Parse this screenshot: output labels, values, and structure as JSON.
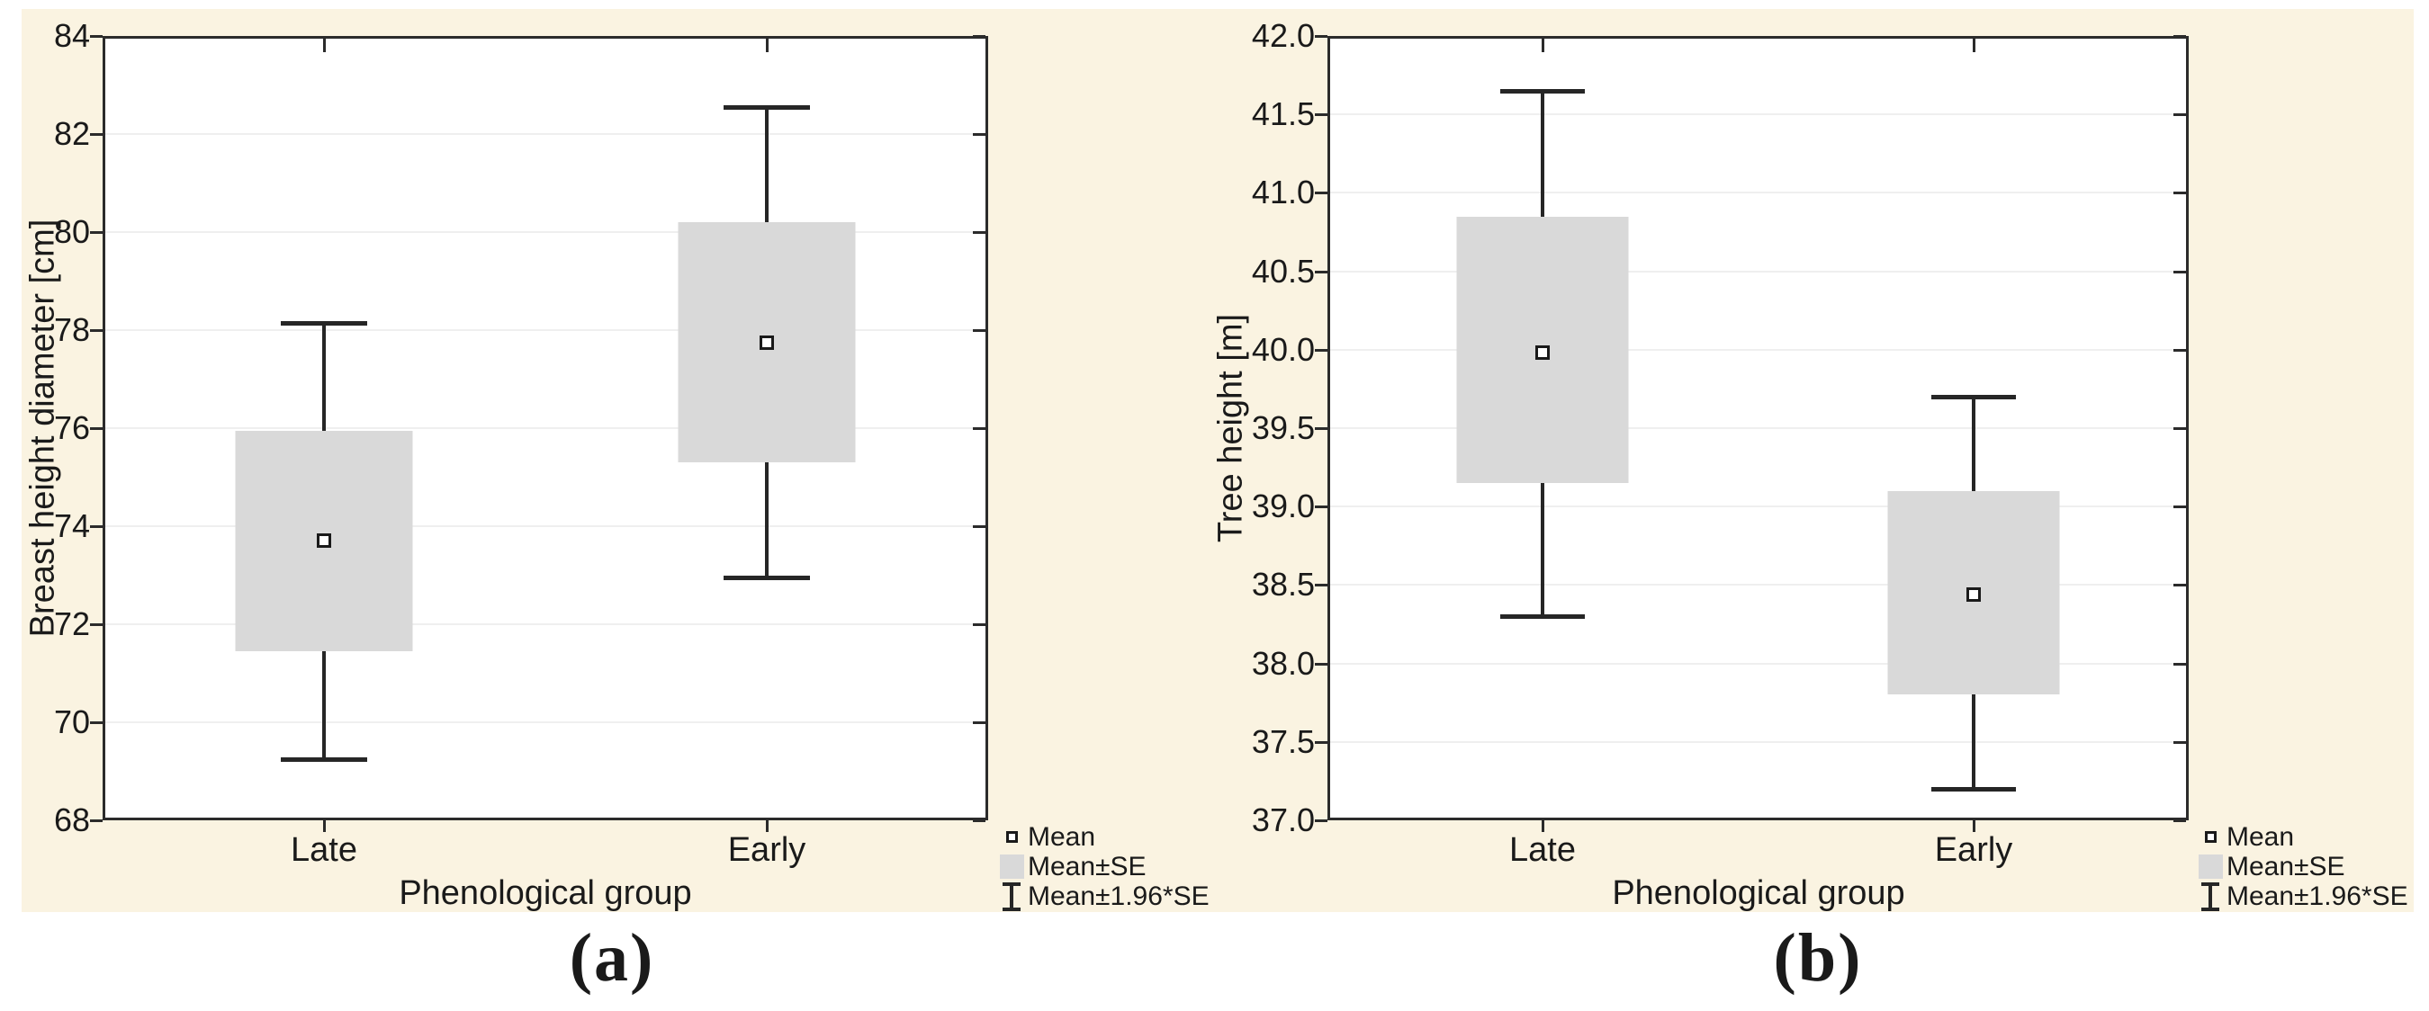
{
  "figure": {
    "captions": {
      "a": "(a)",
      "b": "(b)"
    },
    "colors": {
      "panel_background": "#faf3e1",
      "plot_background": "#ffffff",
      "axis_line": "#2b2b2b",
      "whisker_line": "#262626",
      "box_fill": "#d9d9d9",
      "gridline": "#efefef",
      "text": "#1a1a1a"
    }
  },
  "legend": {
    "items": [
      {
        "icon": "mean-square-icon",
        "label": "Mean"
      },
      {
        "icon": "se-box-icon",
        "label": "Mean±SE"
      },
      {
        "icon": "whisker-icon",
        "label": "Mean±1.96*SE"
      }
    ]
  },
  "chart_data": [
    {
      "type": "box",
      "panel": "a",
      "title": "",
      "xlabel": "Phenological group",
      "ylabel": "Breast height diameter [cm]",
      "ylim": [
        68,
        84
      ],
      "ytick_step": 2,
      "ytick_decimals": 0,
      "grid": "horizontal",
      "legend_position": "bottom-right",
      "categories": [
        "Late",
        "Early"
      ],
      "series": [
        {
          "category": "Late",
          "mean": 73.7,
          "se_low": 71.45,
          "se_high": 75.95,
          "ci_low": 69.25,
          "ci_high": 78.15
        },
        {
          "category": "Early",
          "mean": 77.75,
          "se_low": 75.3,
          "se_high": 80.2,
          "ci_low": 72.95,
          "ci_high": 82.55
        }
      ],
      "whisker_definition": "Mean±1.96*SE",
      "box_definition": "Mean±SE"
    },
    {
      "type": "box",
      "panel": "b",
      "title": "",
      "xlabel": "Phenological group",
      "ylabel": "Tree height [m]",
      "ylim": [
        37,
        42
      ],
      "ytick_step": 0.5,
      "ytick_decimals": 1,
      "grid": "horizontal",
      "legend_position": "bottom-right",
      "categories": [
        "Late",
        "Early"
      ],
      "series": [
        {
          "category": "Late",
          "mean": 39.98,
          "se_low": 39.15,
          "se_high": 40.85,
          "ci_low": 38.3,
          "ci_high": 41.65
        },
        {
          "category": "Early",
          "mean": 38.44,
          "se_low": 37.8,
          "se_high": 39.1,
          "ci_low": 37.2,
          "ci_high": 39.7
        }
      ],
      "whisker_definition": "Mean±1.96*SE",
      "box_definition": "Mean±SE"
    }
  ]
}
